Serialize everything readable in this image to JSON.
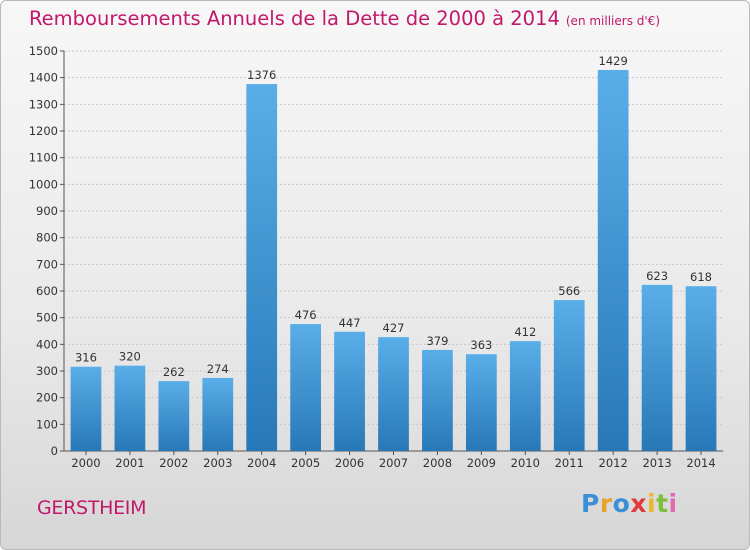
{
  "chart_data": {
    "type": "bar",
    "title": "Remboursements Annuels de la Dette de 2000 à 2014",
    "unit_note": "(en milliers d'€)",
    "categories": [
      "2000",
      "2001",
      "2002",
      "2003",
      "2004",
      "2005",
      "2006",
      "2007",
      "2008",
      "2009",
      "2010",
      "2011",
      "2012",
      "2013",
      "2014"
    ],
    "values": [
      316,
      320,
      262,
      274,
      1376,
      476,
      447,
      427,
      379,
      363,
      412,
      566,
      1429,
      623,
      618
    ],
    "ylim": [
      0,
      1500
    ],
    "yticks": [
      0,
      100,
      200,
      300,
      400,
      500,
      600,
      700,
      800,
      900,
      1000,
      1100,
      1200,
      1300,
      1400,
      1500
    ],
    "grid": true,
    "bar_color_top": "#5aaee8",
    "bar_color_bottom": "#2878b8",
    "title_color": "#c2186b"
  },
  "footer": {
    "town": "GERSTHEIM",
    "logo_letters": [
      {
        "ch": "P",
        "color": "#3a8fd8"
      },
      {
        "ch": "r",
        "color": "#e8a22a"
      },
      {
        "ch": "o",
        "color": "#3a8fd8"
      },
      {
        "ch": "x",
        "color": "#e23a3a"
      },
      {
        "ch": "i",
        "color": "#f0b62a"
      },
      {
        "ch": "t",
        "color": "#7cbf3a"
      },
      {
        "ch": "i",
        "color": "#e26ab0"
      }
    ]
  }
}
